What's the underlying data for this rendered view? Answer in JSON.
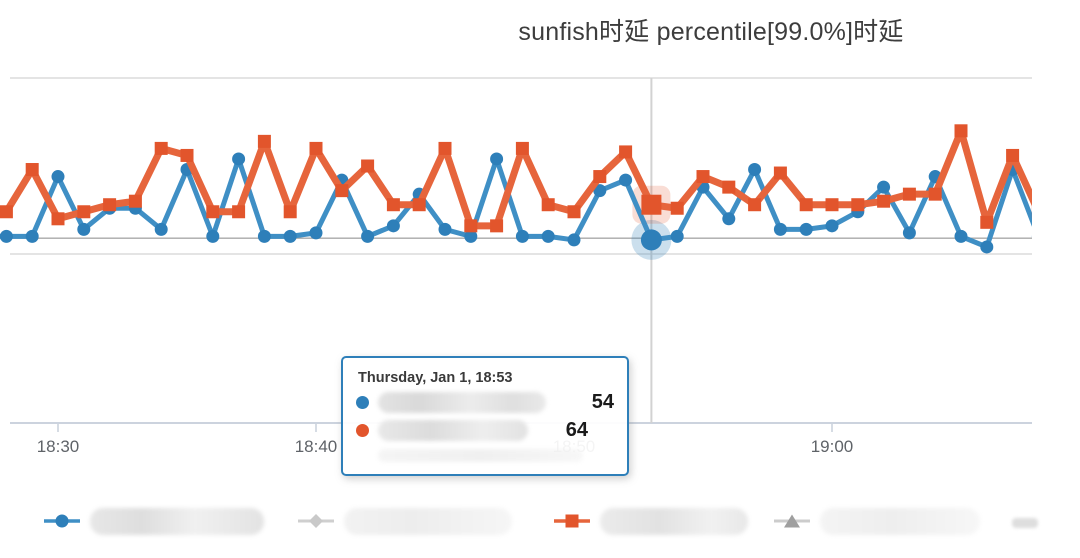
{
  "title": "sunfish时延 percentile[99.0%]时延",
  "chart_data": {
    "type": "line",
    "title": "sunfish时延 percentile[99.0%]时延",
    "x_axis": {
      "tick_labels": [
        "18:30",
        "18:40",
        "18:50",
        "19:00"
      ],
      "tick_minutes": [
        30,
        40,
        50,
        60
      ],
      "unit": "time of day (HH:MM), Thursday, Jan 1"
    },
    "y_axis": {
      "min": 0,
      "max": 100,
      "gridline_values": [
        50,
        100
      ],
      "plotline_value": 54.5
    },
    "point_interval_minutes": 1,
    "series": [
      {
        "name_redacted": true,
        "marker": "circle",
        "color": "#2e7fb9",
        "line_color": "#3f8fc5",
        "start_minute": 27,
        "values": [
          55,
          55,
          55,
          72,
          57,
          63,
          63,
          57,
          74,
          55,
          77,
          55,
          55,
          56,
          71,
          55,
          58,
          67,
          57,
          55,
          77,
          55,
          55,
          54,
          68,
          71,
          54,
          55,
          69,
          60,
          74,
          57,
          57,
          58,
          62,
          69,
          56,
          72,
          55,
          52,
          74,
          55
        ]
      },
      {
        "name_redacted": true,
        "marker": "square",
        "color": "#e2552c",
        "line_color": "#e6653c",
        "start_minute": 27,
        "values": [
          64,
          62,
          74,
          60,
          62,
          64,
          65,
          80,
          78,
          62,
          62,
          82,
          62,
          80,
          68,
          75,
          64,
          64,
          80,
          58,
          58,
          80,
          64,
          62,
          72,
          79,
          64,
          63,
          72,
          69,
          64,
          73,
          64,
          64,
          64,
          65,
          67,
          67,
          85,
          59,
          78,
          62
        ]
      }
    ],
    "hover_point": {
      "minute": 53,
      "time_label": "18:53",
      "series_values": [
        54,
        64
      ]
    },
    "legend_position": "bottom",
    "crosshair": true
  },
  "tooltip": {
    "header": "Thursday, Jan 1, 18:53",
    "rows": [
      {
        "bullet_color": "#2e7fb9",
        "name_redacted": true,
        "value": "54"
      },
      {
        "bullet_color": "#e2552c",
        "name_redacted": true,
        "value": "64"
      }
    ]
  },
  "legend": {
    "items": [
      {
        "marker": "circle",
        "color": "#2e7fb9",
        "line_color": "#3f8fc5",
        "name_redacted": true,
        "visible": true
      },
      {
        "marker": "diamond",
        "color": "#c9c9c9",
        "line_color": "#cfcfcf",
        "name_redacted": true,
        "visible": false
      },
      {
        "marker": "square",
        "color": "#e2552c",
        "line_color": "#e6653c",
        "name_redacted": true,
        "visible": true
      },
      {
        "marker": "triangle",
        "color": "#9f9f9f",
        "line_color": "#cccccc",
        "name_redacted": true,
        "visible": false
      },
      {
        "marker": "dash",
        "color": "#dedede",
        "name_redacted": true,
        "visible": false
      }
    ]
  },
  "colors": {
    "gridline": "#dcdcdc",
    "plotline": "#a8a8a8",
    "axis_line": "#ccd3de",
    "crosshair": "#d2d2d2",
    "tick_label": "#5f6368"
  }
}
